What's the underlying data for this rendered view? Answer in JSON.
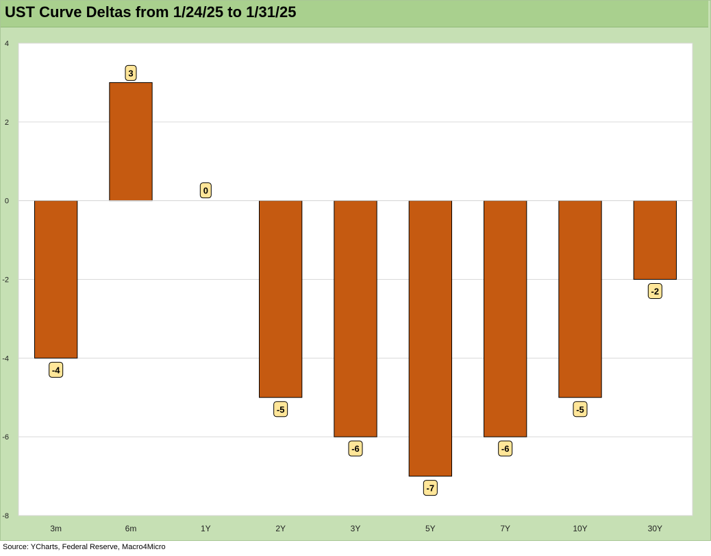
{
  "title": "UST Curve Deltas from 1/24/25 to 1/31/25",
  "source": "Source: YCharts, Federal Reserve, Macro4Micro",
  "colors": {
    "bar": "#c55a11",
    "label_fill": "#ffe699",
    "frame": "#c6e0b4",
    "title_bar": "#a9d08e"
  },
  "chart_data": {
    "type": "bar",
    "categories": [
      "3m",
      "6m",
      "1Y",
      "2Y",
      "3Y",
      "5Y",
      "7Y",
      "10Y",
      "30Y"
    ],
    "values": [
      -4,
      3,
      0,
      -5,
      -6,
      -7,
      -6,
      -5,
      -2
    ],
    "data_labels": [
      "-4",
      "3",
      "0",
      "-5",
      "-6",
      "-7",
      "-6",
      "-5",
      "-2"
    ],
    "ylim": [
      -8,
      4
    ],
    "yticks": [
      4,
      2,
      0,
      -2,
      -4,
      -6,
      -8
    ],
    "grid": true,
    "legend": "none"
  }
}
